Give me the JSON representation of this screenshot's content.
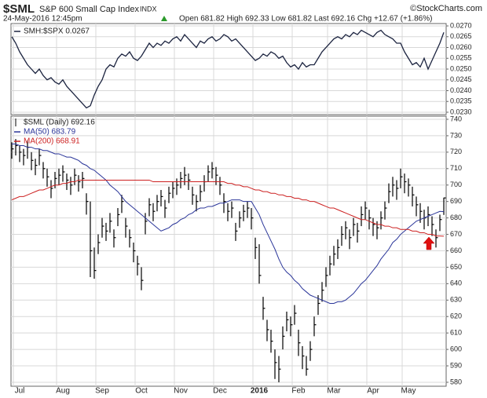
{
  "header": {
    "symbol": "$SML",
    "name": "S&P 600 Small Cap Index",
    "exchange": "INDX",
    "copyright": "©StockCharts.com",
    "date": "24-May-2016 12:45pm",
    "quote": "Open 681.82 High 692.33 Low 681.82 Last 692.16 Chg +12.67 (+1.86%)"
  },
  "chart_data": [
    {
      "type": "line",
      "ylim": [
        0.02289,
        0.02711
      ],
      "yticks": [
        {
          "value": 0.023,
          "label": "0.0230"
        },
        {
          "value": 0.0235,
          "label": "0.0235"
        },
        {
          "value": 0.024,
          "label": "0.0240"
        },
        {
          "value": 0.0245,
          "label": "0.0245"
        },
        {
          "value": 0.025,
          "label": "0.0250"
        },
        {
          "value": 0.0255,
          "label": "0.0255"
        },
        {
          "value": 0.026,
          "label": "0.0260"
        },
        {
          "value": 0.0265,
          "label": "0.0265"
        },
        {
          "value": 0.027,
          "label": "0.0270"
        }
      ],
      "grid": true,
      "series": [
        {
          "name": "SMH:$SPX 0.0267",
          "color": "#1c2440",
          "values": [
            0.0265,
            0.0262,
            0.0258,
            0.0255,
            0.0252,
            0.025,
            0.0248,
            0.025,
            0.0247,
            0.0245,
            0.0246,
            0.0244,
            0.0243,
            0.0245,
            0.0242,
            0.024,
            0.0238,
            0.0236,
            0.0234,
            0.0232,
            0.0233,
            0.0238,
            0.0242,
            0.0245,
            0.025,
            0.0252,
            0.0251,
            0.0255,
            0.0257,
            0.0256,
            0.0258,
            0.0255,
            0.0254,
            0.0256,
            0.0259,
            0.0262,
            0.026,
            0.0262,
            0.0261,
            0.0263,
            0.0262,
            0.0264,
            0.0265,
            0.0263,
            0.0266,
            0.0264,
            0.0262,
            0.026,
            0.0263,
            0.0262,
            0.0264,
            0.0265,
            0.0263,
            0.0264,
            0.0266,
            0.0265,
            0.0263,
            0.0264,
            0.0262,
            0.026,
            0.0258,
            0.0256,
            0.0254,
            0.0255,
            0.0257,
            0.0256,
            0.0258,
            0.0257,
            0.0255,
            0.0256,
            0.0253,
            0.0251,
            0.0252,
            0.025,
            0.0253,
            0.0251,
            0.0252,
            0.0252,
            0.0255,
            0.0258,
            0.026,
            0.0262,
            0.0264,
            0.0265,
            0.0264,
            0.0266,
            0.0265,
            0.0267,
            0.0266,
            0.0268,
            0.0267,
            0.0266,
            0.0265,
            0.0267,
            0.0268,
            0.0266,
            0.0265,
            0.0264,
            0.0262,
            0.0262,
            0.0258,
            0.0255,
            0.0252,
            0.0253,
            0.0251,
            0.0255,
            0.025,
            0.0254,
            0.0258,
            0.0262,
            0.0267
          ]
        }
      ]
    },
    {
      "type": "ohlc",
      "ylim": [
        577.6,
        741.9
      ],
      "yticks": [
        580,
        590,
        600,
        610,
        620,
        630,
        640,
        650,
        660,
        670,
        680,
        690,
        700,
        710,
        720,
        730,
        740
      ],
      "grid": true,
      "categories": [
        null,
        null,
        "Jul",
        null,
        null,
        null,
        null,
        null,
        null,
        null,
        null,
        null,
        null,
        "Aug",
        null,
        null,
        null,
        null,
        null,
        null,
        null,
        null,
        null,
        "Sep",
        null,
        null,
        null,
        null,
        null,
        null,
        null,
        null,
        null,
        "Oct",
        null,
        null,
        null,
        null,
        null,
        null,
        null,
        null,
        null,
        "Nov",
        null,
        null,
        null,
        null,
        null,
        null,
        null,
        null,
        null,
        "Dec",
        null,
        null,
        null,
        null,
        null,
        null,
        null,
        null,
        null,
        "2016",
        null,
        null,
        null,
        null,
        null,
        null,
        null,
        null,
        null,
        "Feb",
        null,
        null,
        null,
        null,
        null,
        null,
        null,
        null,
        "Mar",
        null,
        null,
        null,
        null,
        null,
        null,
        null,
        null,
        null,
        "Apr",
        null,
        null,
        null,
        null,
        null,
        null,
        null,
        null,
        "May",
        null,
        null,
        null,
        null,
        null,
        null,
        null,
        null,
        null
      ],
      "price": {
        "name": "$SML (Daily) 692.16",
        "color": "#000000",
        "high": [
          726,
          728,
          724,
          722,
          727,
          720,
          716,
          722,
          714,
          710,
          703,
          708,
          710,
          712,
          707,
          705,
          710,
          706,
          708,
          695,
          690,
          662,
          670,
          680,
          677,
          683,
          673,
          686,
          694,
          680,
          673,
          665,
          657,
          650,
          683,
          692,
          689,
          694,
          697,
          691,
          699,
          702,
          704,
          708,
          711,
          707,
          699,
          694,
          700,
          706,
          712,
          714,
          711,
          705,
          695,
          689,
          690,
          677,
          684,
          688,
          690,
          686,
          668,
          664,
          632,
          618,
          612,
          600,
          596,
          614,
          623,
          620,
          627,
          612,
          602,
          596,
          605,
          620,
          633,
          641,
          650,
          657,
          663,
          667,
          675,
          678,
          673,
          680,
          677,
          687,
          690,
          685,
          680,
          678,
          684,
          690,
          701,
          705,
          703,
          710,
          707,
          704,
          699,
          693,
          689,
          685,
          687,
          681,
          673,
          682,
          692.33
        ],
        "low": [
          716,
          718,
          714,
          712,
          716,
          709,
          706,
          712,
          704,
          699,
          692,
          698,
          700,
          702,
          697,
          694,
          700,
          696,
          698,
          682,
          644,
          643,
          658,
          668,
          666,
          671,
          662,
          675,
          683,
          668,
          662,
          653,
          645,
          636,
          670,
          681,
          678,
          684,
          687,
          680,
          689,
          692,
          694,
          698,
          700,
          697,
          688,
          684,
          690,
          696,
          702,
          704,
          700,
          694,
          683,
          678,
          680,
          666,
          674,
          678,
          680,
          673,
          655,
          640,
          618,
          605,
          598,
          582,
          580,
          600,
          611,
          608,
          615,
          596,
          588,
          584,
          593,
          608,
          621,
          629,
          638,
          645,
          651,
          655,
          663,
          667,
          661,
          669,
          665,
          675,
          679,
          673,
          669,
          667,
          673,
          679,
          689,
          693,
          691,
          698,
          695,
          693,
          687,
          681,
          677,
          673,
          675,
          669,
          662,
          672,
          681.82
        ],
        "close": [
          722,
          724,
          720,
          718,
          723,
          715,
          712,
          718,
          710,
          705,
          698,
          704,
          706,
          708,
          703,
          700,
          706,
          702,
          704,
          690,
          660,
          648,
          665,
          675,
          672,
          678,
          668,
          682,
          690,
          675,
          668,
          660,
          652,
          642,
          678,
          688,
          684,
          690,
          693,
          686,
          695,
          698,
          700,
          704,
          706,
          703,
          694,
          690,
          696,
          702,
          708,
          710,
          706,
          700,
          690,
          684,
          686,
          672,
          680,
          684,
          686,
          680,
          662,
          645,
          625,
          612,
          605,
          592,
          588,
          608,
          618,
          615,
          622,
          604,
          596,
          588,
          600,
          615,
          628,
          636,
          645,
          652,
          658,
          662,
          670,
          674,
          668,
          676,
          672,
          682,
          686,
          680,
          676,
          674,
          680,
          686,
          696,
          700,
          698,
          705,
          702,
          700,
          694,
          688,
          684,
          680,
          682,
          676,
          668,
          679,
          692.16
        ]
      },
      "series": [
        {
          "name": "MA(50) 683.79",
          "color": "#2a3599",
          "values": [
            725,
            725,
            724,
            724,
            723,
            723,
            722,
            722,
            721,
            721,
            720,
            719,
            719,
            718,
            717,
            717,
            716,
            715,
            713,
            712,
            710,
            709,
            707,
            705,
            703,
            700,
            698,
            696,
            693,
            690,
            688,
            686,
            684,
            682,
            680,
            678,
            676,
            674,
            672,
            673,
            674,
            676,
            677,
            679,
            680,
            682,
            683,
            685,
            686,
            686,
            687,
            687,
            688,
            689,
            689,
            690,
            691,
            691,
            691,
            690,
            690,
            690,
            686,
            682,
            676,
            671,
            666,
            661,
            655,
            650,
            647,
            645,
            642,
            640,
            637,
            635,
            633,
            632,
            631,
            630,
            629,
            628,
            628,
            629,
            629,
            630,
            632,
            634,
            637,
            640,
            642,
            645,
            648,
            651,
            655,
            658,
            661,
            665,
            667,
            670,
            672,
            674,
            676,
            678,
            679,
            680,
            681,
            682,
            683,
            684,
            683.79
          ]
        },
        {
          "name": "MA(200) 668.91",
          "color": "#cc2020",
          "values": [
            691,
            692,
            693,
            693,
            694,
            695,
            696,
            697,
            697,
            698,
            699,
            700,
            700,
            701,
            701,
            702,
            702,
            703,
            703,
            703,
            703,
            703,
            703,
            703,
            703,
            703,
            703,
            703,
            703,
            703,
            703,
            703,
            703,
            703,
            703,
            703,
            702,
            702,
            702,
            702,
            702,
            702,
            702,
            702,
            702,
            702,
            702,
            702,
            702,
            702,
            702,
            702,
            702,
            702,
            702,
            701,
            701,
            700,
            700,
            699,
            699,
            698,
            697,
            697,
            696,
            696,
            695,
            695,
            694,
            694,
            693,
            693,
            692,
            692,
            691,
            691,
            690,
            690,
            689,
            688,
            687,
            686,
            686,
            685,
            684,
            683,
            682,
            681,
            680,
            679,
            679,
            678,
            677,
            676,
            676,
            675,
            675,
            674,
            674,
            673,
            673,
            673,
            672,
            672,
            671,
            671,
            670,
            670,
            669,
            669,
            668.91
          ]
        }
      ]
    }
  ]
}
